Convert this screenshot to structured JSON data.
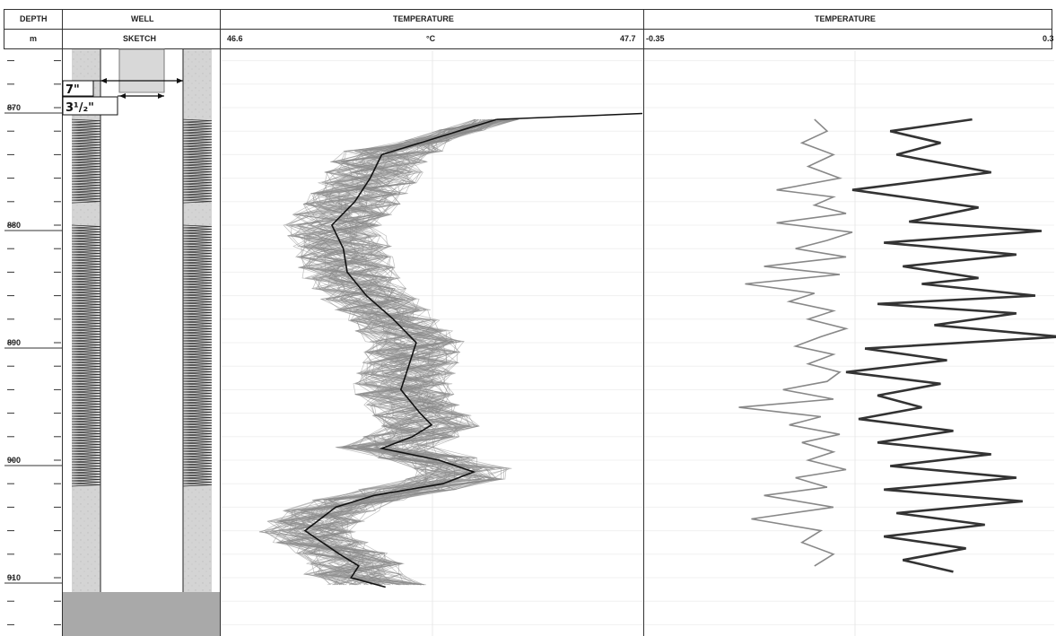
{
  "headers": {
    "depth_title": "DEPTH",
    "depth_unit": "m",
    "well_title": "WELL",
    "well_subtitle": "SKETCH",
    "temp1_title": "TEMPERATURE",
    "temp1_unit": "°C",
    "temp1_min": "46.6",
    "temp1_max": "47.7",
    "temp2_title": "TEMPERATURE",
    "temp2_min": "-0.35",
    "temp2_max": "0.3"
  },
  "well_sketch": {
    "outer_casing_label": "7\"",
    "inner_casing_label": "3¹/₂\"",
    "screen_intervals_m": [
      [
        871,
        878
      ],
      [
        880,
        902
      ]
    ]
  },
  "colors": {
    "ensemble": "#8a8a8a",
    "mean_line": "#111111",
    "anomaly_thin": "#888888",
    "anomaly_thick": "#333333",
    "formation": "#d4d4d4",
    "sump": "#a9a9a9"
  },
  "chart_data": [
    {
      "type": "line",
      "title": "TEMPERATURE",
      "xlabel": "°C",
      "ylabel": "DEPTH m",
      "xlim": [
        46.6,
        47.7
      ],
      "ylim": [
        865,
        915
      ],
      "y_ticks": [
        870,
        880,
        890,
        900,
        910
      ],
      "grid": true,
      "series": [
        {
          "role": "mean",
          "x": [
            47.32,
            47.22,
            47.02,
            46.99,
            46.95,
            46.89,
            46.92,
            46.93,
            46.98,
            47.05,
            47.11,
            47.09,
            47.07,
            47.12,
            47.15,
            47.1,
            47.02,
            47.17,
            47.26,
            47.18,
            47.0,
            46.9,
            46.82,
            46.91,
            46.96,
            46.94,
            47.03
          ],
          "y": [
            871,
            872,
            874,
            876,
            878,
            880,
            882,
            884,
            886,
            888,
            890,
            892,
            894,
            896,
            897,
            898,
            899,
            900,
            901,
            902,
            903,
            904,
            906,
            908,
            909,
            910,
            910.8
          ]
        }
      ],
      "ensemble_note": "many overlapping gray realisations around the mean"
    },
    {
      "type": "line",
      "title": "TEMPERATURE",
      "xlim": [
        -0.35,
        0.3
      ],
      "ylim": [
        865,
        915
      ],
      "y_ticks": [
        870,
        880,
        890,
        900,
        910
      ],
      "series": [
        {
          "role": "anomaly-thin",
          "x": [
            -0.08,
            -0.06,
            -0.1,
            -0.05,
            -0.09,
            -0.04,
            -0.14,
            -0.05,
            -0.08,
            -0.03,
            -0.14,
            -0.02,
            -0.06,
            -0.11,
            -0.03,
            -0.16,
            -0.04,
            -0.19,
            -0.08,
            -0.12,
            -0.05,
            -0.09,
            -0.03,
            -0.07,
            -0.11,
            -0.05,
            -0.09,
            -0.04,
            -0.06,
            -0.13,
            -0.05,
            -0.2,
            -0.07,
            -0.12,
            -0.04,
            -0.1,
            -0.05,
            -0.09,
            -0.03,
            -0.11,
            -0.06,
            -0.16,
            -0.05,
            -0.18,
            -0.07,
            -0.1,
            -0.05,
            -0.08
          ],
          "y": [
            871,
            872,
            873,
            874,
            875,
            876,
            877,
            877.6,
            878.3,
            879,
            879.8,
            880.6,
            881.3,
            882,
            882.7,
            883.5,
            884.2,
            885,
            885.8,
            886.5,
            887.3,
            888,
            888.8,
            889.5,
            890.3,
            891,
            891.8,
            892.5,
            893.3,
            894,
            894.8,
            895.5,
            896.3,
            897,
            897.8,
            898.5,
            899.3,
            900,
            900.8,
            901.5,
            902.3,
            903,
            904,
            905,
            906,
            907,
            908,
            909
          ]
        },
        {
          "role": "anomaly-thick",
          "x": [
            0.17,
            0.04,
            0.12,
            0.05,
            0.2,
            -0.02,
            0.18,
            0.07,
            0.28,
            0.03,
            0.24,
            0.06,
            0.18,
            0.09,
            0.27,
            0.02,
            0.24,
            0.11,
            0.31,
            0.0,
            0.13,
            -0.03,
            0.12,
            0.02,
            0.09,
            -0.01,
            0.14,
            0.02,
            0.2,
            0.04,
            0.24,
            0.03,
            0.25,
            0.05,
            0.19,
            0.03,
            0.16,
            0.06,
            0.14
          ],
          "y": [
            871,
            872,
            873,
            874,
            875.5,
            877,
            878.5,
            879.7,
            880.5,
            881.5,
            882.5,
            883.5,
            884.5,
            885,
            886,
            886.7,
            887.5,
            888.5,
            889.5,
            890.5,
            891.5,
            892.5,
            893.5,
            894.5,
            895.5,
            896.5,
            897.5,
            898.5,
            899.5,
            900.5,
            901.5,
            902.5,
            903.5,
            904.5,
            905.5,
            906.5,
            907.5,
            908.5,
            909.5
          ]
        }
      ]
    }
  ]
}
